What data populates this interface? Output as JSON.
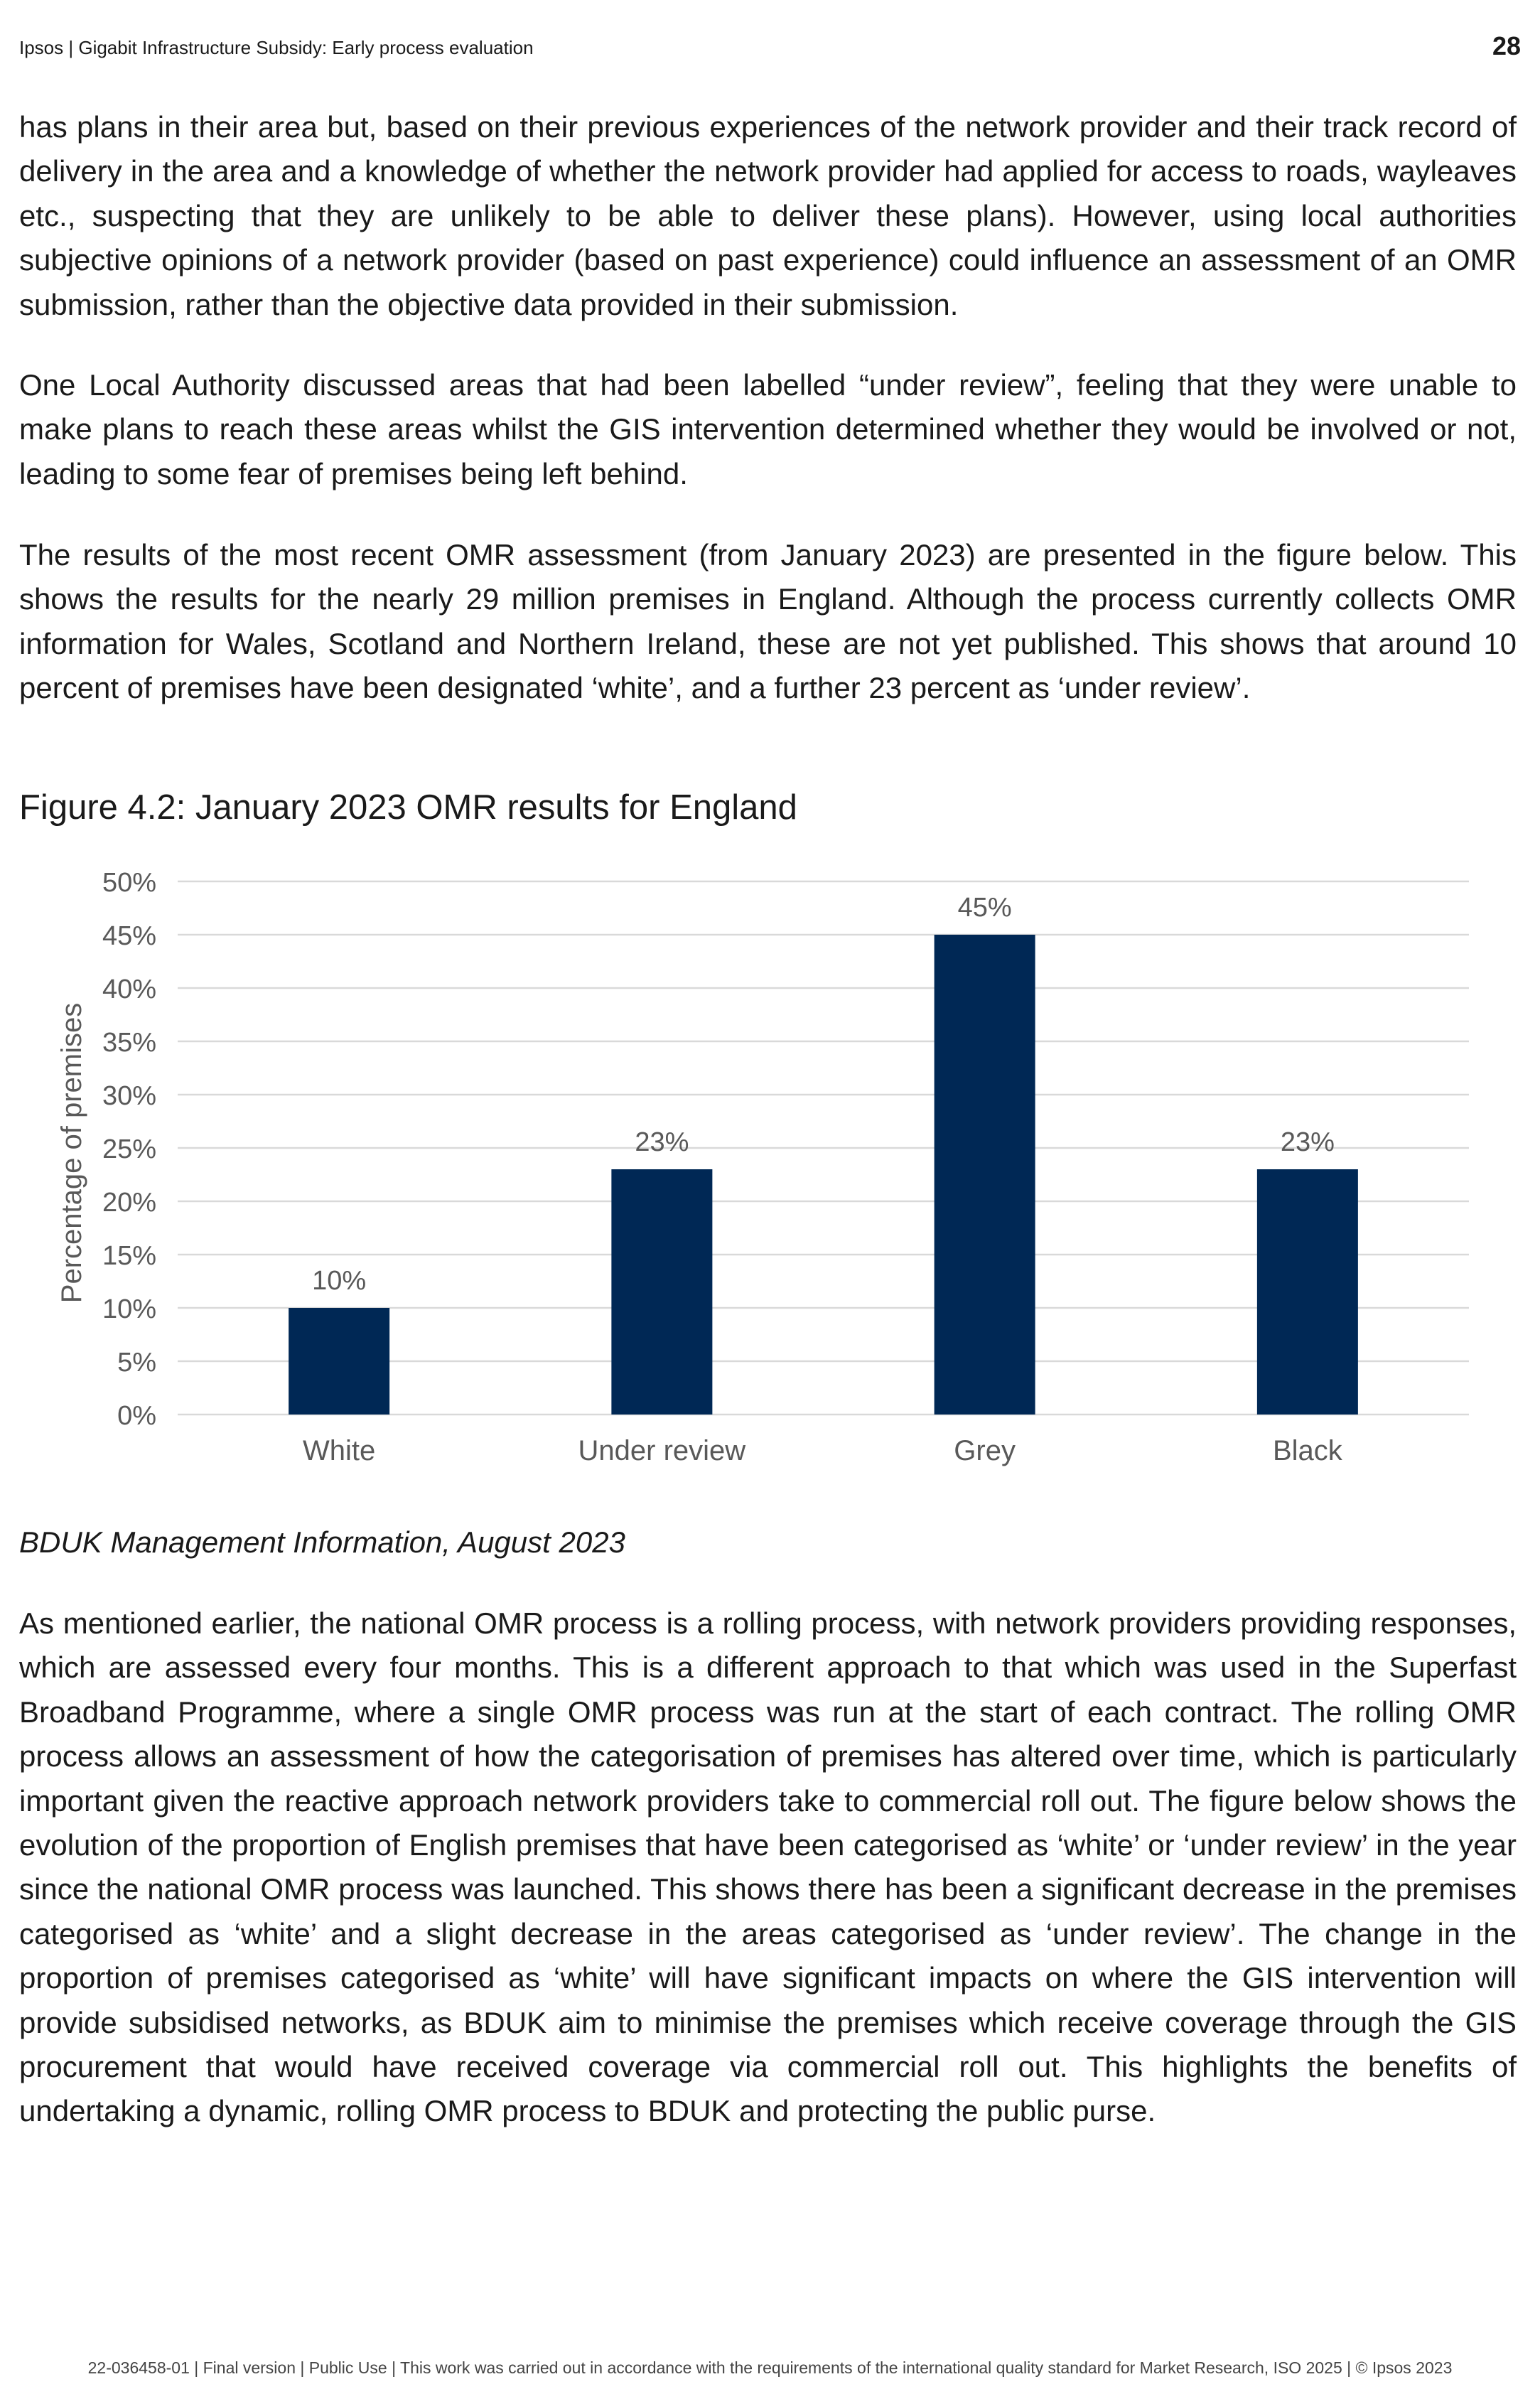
{
  "header": {
    "title": "Ipsos | Gigabit Infrastructure Subsidy: Early process evaluation",
    "page_number": "28"
  },
  "paragraphs": {
    "p1": "has plans in their area but, based on their previous experiences of the network provider and their track record of delivery in the area and a knowledge of whether the network provider had applied for access to roads, wayleaves etc., suspecting that they are unlikely to be able to deliver these plans). However, using local authorities subjective opinions of a network provider (based on past experience) could influence an assessment of an OMR submission, rather than the objective data provided in their submission.",
    "p2": "One Local Authority discussed areas that had been labelled “under review”, feeling that they were unable to make plans to reach these areas whilst the GIS intervention determined whether they would be involved or not, leading to some fear of premises being left behind.",
    "p3": "The results of the most recent OMR assessment (from January 2023) are presented in the figure below. This shows the results for the nearly 29 million premises in England. Although the process currently collects OMR information for Wales, Scotland and Northern Ireland, these are not yet published. This shows that around 10 percent of premises have been designated ‘white’, and a further 23 percent as ‘under review’.",
    "p4": "As mentioned earlier, the national OMR process is a rolling process, with network providers providing responses, which are assessed every four months. This is a different approach to that which was used in the Superfast Broadband Programme, where a single OMR process was run at the start of each contract. The rolling OMR process allows an assessment of how the categorisation of premises has altered over time, which is particularly important given the reactive approach network providers take to commercial roll out. The figure below shows the evolution of the proportion of English premises that have been categorised as ‘white’ or ‘under review’ in the year since the national OMR process was launched. This shows there has been a significant decrease in the premises categorised as ‘white’ and a slight decrease in the areas categorised as ‘under review’. The change in the proportion of premises categorised as ‘white’ will have significant impacts on where the GIS intervention will provide subsidised networks, as BDUK aim to minimise the premises which receive coverage through the GIS procurement that would have received coverage via commercial roll out. This highlights the benefits of undertaking a dynamic, rolling OMR process to BDUK and protecting the public purse."
  },
  "figure": {
    "title": "Figure 4.2: January 2023 OMR results for England",
    "source": "BDUK Management Information, August 2023"
  },
  "chart_data": {
    "type": "bar",
    "title": "",
    "categories": [
      "White",
      "Under review",
      "Grey",
      "Black"
    ],
    "values": [
      10,
      23,
      45,
      23
    ],
    "data_labels": [
      "10%",
      "23%",
      "45%",
      "23%"
    ],
    "xlabel": "",
    "ylabel": "Percentage of premises",
    "ylim": [
      0,
      50
    ],
    "yticks": [
      0,
      5,
      10,
      15,
      20,
      25,
      30,
      35,
      40,
      45,
      50
    ],
    "ytick_labels": [
      "0%",
      "5%",
      "10%",
      "15%",
      "20%",
      "25%",
      "30%",
      "35%",
      "40%",
      "45%",
      "50%"
    ],
    "grid": true,
    "legend": "none",
    "bar_color": "#002855",
    "grid_color": "#d9d9d9",
    "label_color": "#595959"
  },
  "footer": {
    "text": "22-036458-01 | Final version | Public Use | This work was carried out in accordance with the requirements of the international quality standard for Market Research, ISO 2025 | © Ipsos 2023"
  }
}
